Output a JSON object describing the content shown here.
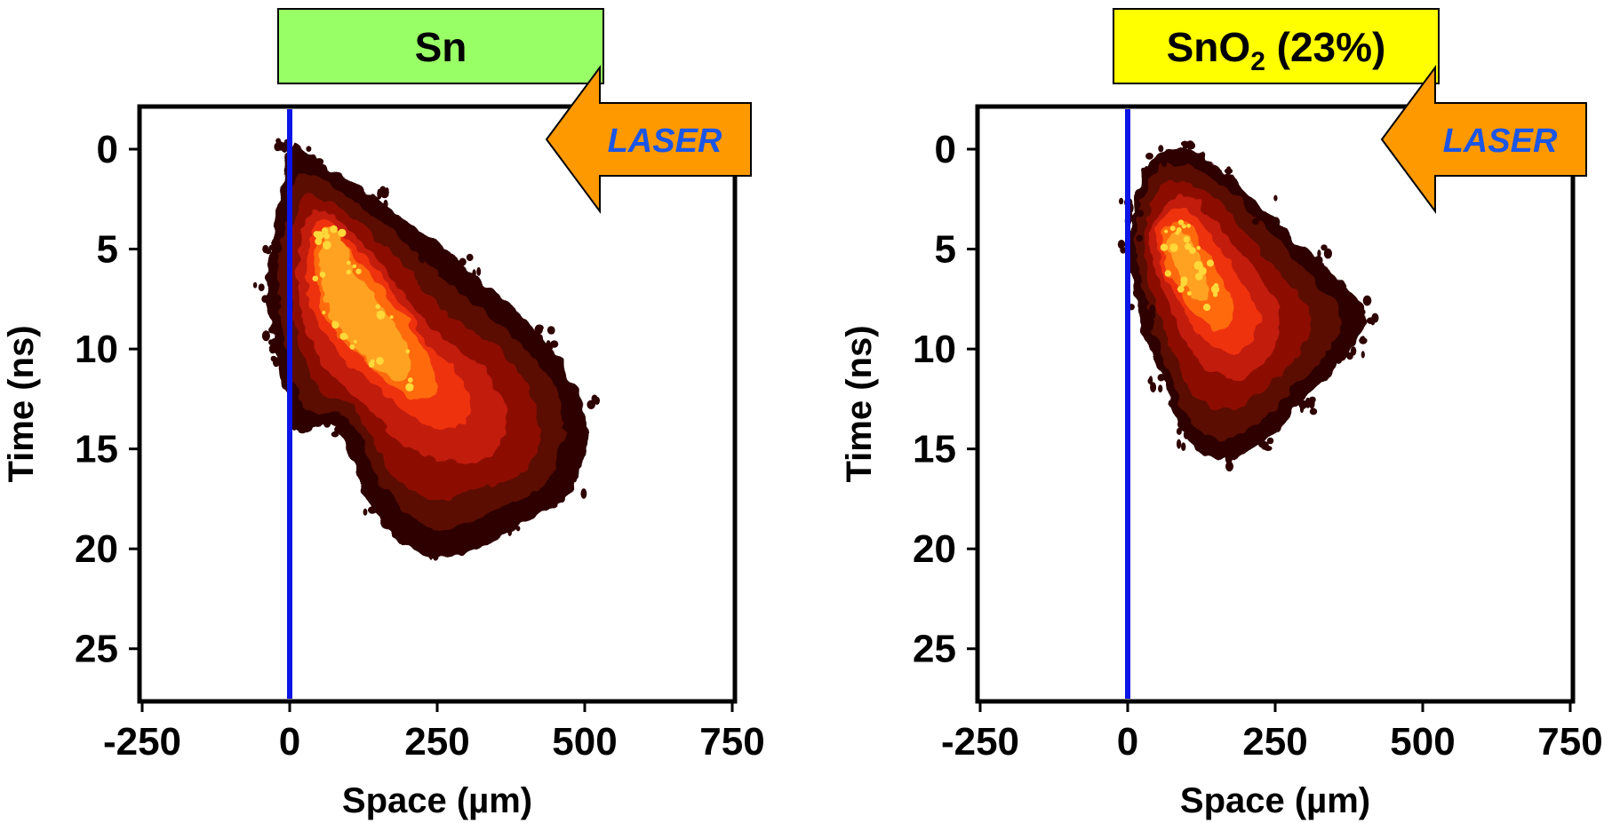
{
  "colors": {
    "title_bg_left": "#99ff66",
    "title_bg_right": "#ffff00",
    "arrow": "#ff9900",
    "laser_text": "#1a56e6",
    "target_line": "#0a14e6",
    "heat_ramp": [
      "#2e0000",
      "#5a0b05",
      "#8c0f05",
      "#c21a0a",
      "#ee3010",
      "#ff6a10",
      "#ffa220",
      "#ffd83a"
    ]
  },
  "chart_data": [
    {
      "type": "scatter",
      "title": "Sn",
      "title_sub": "",
      "title_tail": "",
      "annotation": "LASER",
      "annotation_icon": "arrow-left-icon",
      "xlabel": "Space (µm)",
      "ylabel": "Time (ns)",
      "xlim": [
        -250,
        750
      ],
      "ylim": [
        27.5,
        -2
      ],
      "xticks": [
        -250,
        0,
        250,
        500,
        750
      ],
      "yticks": [
        0,
        5,
        10,
        15,
        20,
        25
      ],
      "xtick_labels": [
        "-250",
        "0",
        "250",
        "500",
        "750"
      ],
      "ytick_labels": [
        "0",
        "5",
        "10",
        "15",
        "20",
        "25"
      ],
      "reference_line_x": 0,
      "density_contours": [
        {
          "level": 1,
          "points": [
            [
              -30,
              5
            ],
            [
              0,
              0
            ],
            [
              40,
              0.5
            ],
            [
              150,
              2.5
            ],
            [
              300,
              6
            ],
            [
              430,
              9.5
            ],
            [
              500,
              13
            ],
            [
              480,
              17
            ],
            [
              380,
              19
            ],
            [
              250,
              20.5
            ],
            [
              150,
              18.5
            ],
            [
              80,
              14
            ],
            [
              10,
              14
            ],
            [
              -25,
              10
            ],
            [
              -40,
              7
            ]
          ]
        },
        {
          "level": 2,
          "points": [
            [
              -15,
              5
            ],
            [
              10,
              1.5
            ],
            [
              50,
              1.5
            ],
            [
              150,
              3.5
            ],
            [
              280,
              7
            ],
            [
              400,
              10
            ],
            [
              460,
              13
            ],
            [
              440,
              16.5
            ],
            [
              350,
              18
            ],
            [
              250,
              19
            ],
            [
              160,
              17
            ],
            [
              100,
              13.5
            ],
            [
              30,
              13
            ],
            [
              -5,
              10
            ],
            [
              -20,
              7
            ]
          ]
        },
        {
          "level": 3,
          "points": [
            [
              0,
              5
            ],
            [
              20,
              2.5
            ],
            [
              60,
              2.5
            ],
            [
              150,
              4.5
            ],
            [
              260,
              8
            ],
            [
              370,
              10.5
            ],
            [
              420,
              13.5
            ],
            [
              400,
              16
            ],
            [
              320,
              17
            ],
            [
              240,
              17.5
            ],
            [
              170,
              16
            ],
            [
              110,
              13
            ],
            [
              50,
              12
            ],
            [
              15,
              9.5
            ],
            [
              0,
              7
            ]
          ]
        },
        {
          "level": 4,
          "points": [
            [
              15,
              5
            ],
            [
              40,
              3
            ],
            [
              80,
              3.5
            ],
            [
              150,
              5.5
            ],
            [
              240,
              9
            ],
            [
              330,
              11
            ],
            [
              370,
              13.5
            ],
            [
              330,
              15.5
            ],
            [
              250,
              15.5
            ],
            [
              180,
              14.5
            ],
            [
              120,
              12.5
            ],
            [
              60,
              11
            ],
            [
              30,
              9
            ],
            [
              15,
              7
            ]
          ]
        },
        {
          "level": 5,
          "points": [
            [
              30,
              5
            ],
            [
              55,
              3.5
            ],
            [
              95,
              4.5
            ],
            [
              160,
              6.5
            ],
            [
              230,
              9.5
            ],
            [
              290,
              11.5
            ],
            [
              300,
              13.5
            ],
            [
              250,
              14
            ],
            [
              190,
              13
            ],
            [
              130,
              11.5
            ],
            [
              75,
              10
            ],
            [
              45,
              8.5
            ],
            [
              30,
              7
            ]
          ]
        },
        {
          "level": 6,
          "points": [
            [
              45,
              5
            ],
            [
              70,
              4
            ],
            [
              110,
              5.5
            ],
            [
              170,
              7.5
            ],
            [
              230,
              10
            ],
            [
              250,
              12
            ],
            [
              210,
              12.5
            ],
            [
              160,
              11.5
            ],
            [
              110,
              10
            ],
            [
              70,
              9
            ],
            [
              50,
              7
            ]
          ]
        },
        {
          "level": 7,
          "points": [
            [
              60,
              4.5
            ],
            [
              80,
              4
            ],
            [
              110,
              6
            ],
            [
              160,
              8
            ],
            [
              200,
              10
            ],
            [
              195,
              11.5
            ],
            [
              150,
              11
            ],
            [
              100,
              9.5
            ],
            [
              70,
              8.5
            ],
            [
              55,
              6.5
            ]
          ]
        }
      ]
    },
    {
      "type": "scatter",
      "title": "SnO",
      "title_sub": "2",
      "title_tail": " (23%)",
      "annotation": "LASER",
      "annotation_icon": "arrow-left-icon",
      "xlabel": "Space (µm)",
      "ylabel": "Time (ns)",
      "xlim": [
        -250,
        750
      ],
      "ylim": [
        27.5,
        -2
      ],
      "xticks": [
        -250,
        0,
        250,
        500,
        750
      ],
      "yticks": [
        0,
        5,
        10,
        15,
        20,
        25
      ],
      "xtick_labels": [
        "-250",
        "0",
        "250",
        "500",
        "750"
      ],
      "ytick_labels": [
        "0",
        "5",
        "10",
        "15",
        "20",
        "25"
      ],
      "reference_line_x": 0,
      "density_contours": [
        {
          "level": 1,
          "points": [
            [
              10,
              3
            ],
            [
              40,
              0.5
            ],
            [
              100,
              0
            ],
            [
              160,
              1
            ],
            [
              230,
              3
            ],
            [
              320,
              5.5
            ],
            [
              400,
              8
            ],
            [
              380,
              10
            ],
            [
              300,
              12.5
            ],
            [
              240,
              14.5
            ],
            [
              160,
              15.5
            ],
            [
              100,
              14.5
            ],
            [
              60,
              11.5
            ],
            [
              20,
              8.5
            ],
            [
              0,
              5
            ]
          ]
        },
        {
          "level": 2,
          "points": [
            [
              20,
              3
            ],
            [
              50,
              1
            ],
            [
              100,
              0.8
            ],
            [
              160,
              1.8
            ],
            [
              220,
              3.5
            ],
            [
              300,
              6
            ],
            [
              360,
              8.2
            ],
            [
              340,
              10
            ],
            [
              280,
              12
            ],
            [
              220,
              13.8
            ],
            [
              160,
              14.5
            ],
            [
              110,
              13.8
            ],
            [
              70,
              11
            ],
            [
              35,
              8
            ],
            [
              15,
              5
            ]
          ]
        },
        {
          "level": 3,
          "points": [
            [
              30,
              3.5
            ],
            [
              60,
              1.8
            ],
            [
              100,
              1.6
            ],
            [
              150,
              2.5
            ],
            [
              210,
              4.5
            ],
            [
              280,
              7
            ],
            [
              310,
              8.5
            ],
            [
              290,
              10.2
            ],
            [
              240,
              11.8
            ],
            [
              180,
              13
            ],
            [
              120,
              12.5
            ],
            [
              80,
              10.5
            ],
            [
              45,
              7.5
            ],
            [
              28,
              5
            ]
          ]
        },
        {
          "level": 4,
          "points": [
            [
              40,
              4
            ],
            [
              70,
              2.5
            ],
            [
              105,
              2.4
            ],
            [
              145,
              3.5
            ],
            [
              200,
              5.5
            ],
            [
              250,
              7.5
            ],
            [
              260,
              9
            ],
            [
              235,
              10.5
            ],
            [
              190,
              11.5
            ],
            [
              135,
              11
            ],
            [
              95,
              9.5
            ],
            [
              60,
              7
            ],
            [
              40,
              5.5
            ]
          ]
        },
        {
          "level": 5,
          "points": [
            [
              50,
              4
            ],
            [
              80,
              3
            ],
            [
              110,
              3.2
            ],
            [
              145,
              4.5
            ],
            [
              190,
              6.5
            ],
            [
              220,
              8
            ],
            [
              210,
              9.5
            ],
            [
              170,
              10.2
            ],
            [
              130,
              9.5
            ],
            [
              95,
              8
            ],
            [
              65,
              6.5
            ],
            [
              50,
              5
            ]
          ]
        },
        {
          "level": 6,
          "points": [
            [
              60,
              4.2
            ],
            [
              85,
              3.5
            ],
            [
              110,
              4
            ],
            [
              140,
              5.5
            ],
            [
              170,
              7
            ],
            [
              180,
              8.5
            ],
            [
              150,
              9
            ],
            [
              115,
              8.2
            ],
            [
              85,
              7
            ],
            [
              65,
              5.8
            ]
          ]
        },
        {
          "level": 7,
          "points": [
            [
              70,
              4.5
            ],
            [
              90,
              4
            ],
            [
              110,
              4.8
            ],
            [
              130,
              6
            ],
            [
              140,
              7.2
            ],
            [
              120,
              7.5
            ],
            [
              95,
              6.8
            ],
            [
              75,
              5.8
            ]
          ]
        }
      ]
    }
  ]
}
